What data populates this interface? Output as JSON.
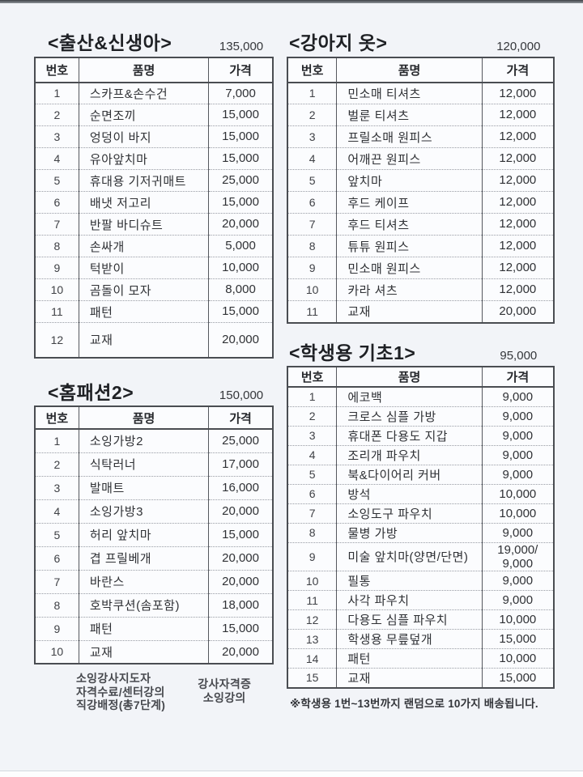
{
  "tables": [
    {
      "title": "<출산&신생아>",
      "total": "135,000",
      "headers": [
        "번호",
        "품명",
        "가격"
      ],
      "rows": [
        {
          "no": "1",
          "name": "스카프&손수건",
          "price": "7,000"
        },
        {
          "no": "2",
          "name": "순면조끼",
          "price": "15,000"
        },
        {
          "no": "3",
          "name": "엉덩이 바지",
          "price": "15,000"
        },
        {
          "no": "4",
          "name": "유아앞치마",
          "price": "15,000"
        },
        {
          "no": "5",
          "name": "휴대용 기저귀매트",
          "price": "25,000"
        },
        {
          "no": "6",
          "name": "배냇 저고리",
          "price": "15,000"
        },
        {
          "no": "7",
          "name": "반팔 바디슈트",
          "price": "20,000"
        },
        {
          "no": "8",
          "name": "손싸개",
          "price": "5,000"
        },
        {
          "no": "9",
          "name": "턱받이",
          "price": "10,000"
        },
        {
          "no": "10",
          "name": "곰돌이 모자",
          "price": "8,000"
        },
        {
          "no": "11",
          "name": "패턴",
          "price": "15,000"
        },
        {
          "no": "12",
          "name": "교재",
          "price": "20,000"
        }
      ]
    },
    {
      "title": "<강아지 옷>",
      "total": "120,000",
      "headers": [
        "번호",
        "품명",
        "가격"
      ],
      "rows": [
        {
          "no": "1",
          "name": "민소매 티셔츠",
          "price": "12,000"
        },
        {
          "no": "2",
          "name": "벌룬 티셔츠",
          "price": "12,000"
        },
        {
          "no": "3",
          "name": "프릴소매 원피스",
          "price": "12,000"
        },
        {
          "no": "4",
          "name": "어깨끈 원피스",
          "price": "12,000"
        },
        {
          "no": "5",
          "name": "앞치마",
          "price": "12,000"
        },
        {
          "no": "6",
          "name": "후드 케이프",
          "price": "12,000"
        },
        {
          "no": "7",
          "name": "후드 티셔츠",
          "price": "12,000"
        },
        {
          "no": "8",
          "name": "튜튜 원피스",
          "price": "12,000"
        },
        {
          "no": "9",
          "name": "민소매 원피스",
          "price": "12,000"
        },
        {
          "no": "10",
          "name": "카라 셔츠",
          "price": "12,000"
        },
        {
          "no": "11",
          "name": "교재",
          "price": "20,000"
        }
      ]
    },
    {
      "title": "<홈패션2>",
      "total": "150,000",
      "headers": [
        "번호",
        "품명",
        "가격"
      ],
      "rows": [
        {
          "no": "1",
          "name": "소잉가방2",
          "price": "25,000"
        },
        {
          "no": "2",
          "name": "식탁러너",
          "price": "17,000"
        },
        {
          "no": "3",
          "name": "발매트",
          "price": "16,000"
        },
        {
          "no": "4",
          "name": "소잉가방3",
          "price": "20,000"
        },
        {
          "no": "5",
          "name": "허리 앞치마",
          "price": "15,000"
        },
        {
          "no": "6",
          "name": "겹 프릴베개",
          "price": "20,000"
        },
        {
          "no": "7",
          "name": "바란스",
          "price": "20,000"
        },
        {
          "no": "8",
          "name": "호박쿠션(솜포함)",
          "price": "18,000"
        },
        {
          "no": "9",
          "name": "패턴",
          "price": "15,000"
        },
        {
          "no": "10",
          "name": "교재",
          "price": "20,000"
        }
      ]
    },
    {
      "title": "<학생용 기초1>",
      "total": "95,000",
      "headers": [
        "번호",
        "품명",
        "가격"
      ],
      "rows": [
        {
          "no": "1",
          "name": "에코백",
          "price": "9,000"
        },
        {
          "no": "2",
          "name": "크로스 심플 가방",
          "price": "9,000"
        },
        {
          "no": "3",
          "name": "휴대폰 다용도 지갑",
          "price": "9,000"
        },
        {
          "no": "4",
          "name": "조리개 파우치",
          "price": "9,000"
        },
        {
          "no": "5",
          "name": "북&다이어리 커버",
          "price": "9,000"
        },
        {
          "no": "6",
          "name": "방석",
          "price": "10,000"
        },
        {
          "no": "7",
          "name": "소잉도구 파우치",
          "price": "10,000"
        },
        {
          "no": "8",
          "name": "물병 가방",
          "price": "9,000"
        },
        {
          "no": "9",
          "name": "미술 앞치마(양면/단면)",
          "price": "19,000/\n9,000"
        },
        {
          "no": "10",
          "name": "필통",
          "price": "9,000"
        },
        {
          "no": "11",
          "name": "사각 파우치",
          "price": "9,000"
        },
        {
          "no": "12",
          "name": "다용도 심플 파우치",
          "price": "10,000"
        },
        {
          "no": "13",
          "name": "학생용 무릎덮개",
          "price": "15,000"
        },
        {
          "no": "14",
          "name": "패턴",
          "price": "10,000"
        },
        {
          "no": "15",
          "name": "교재",
          "price": "15,000"
        }
      ]
    }
  ],
  "footer": {
    "left_lines": [
      "소잉강사지도자",
      "자격수료/센터강의",
      "직강배정(총7단계)"
    ],
    "right_lines": [
      "강사자격증",
      "소잉강의"
    ]
  },
  "footnote": "※학생용 1번~13번까지 랜덤으로 10가지 배송됩니다."
}
